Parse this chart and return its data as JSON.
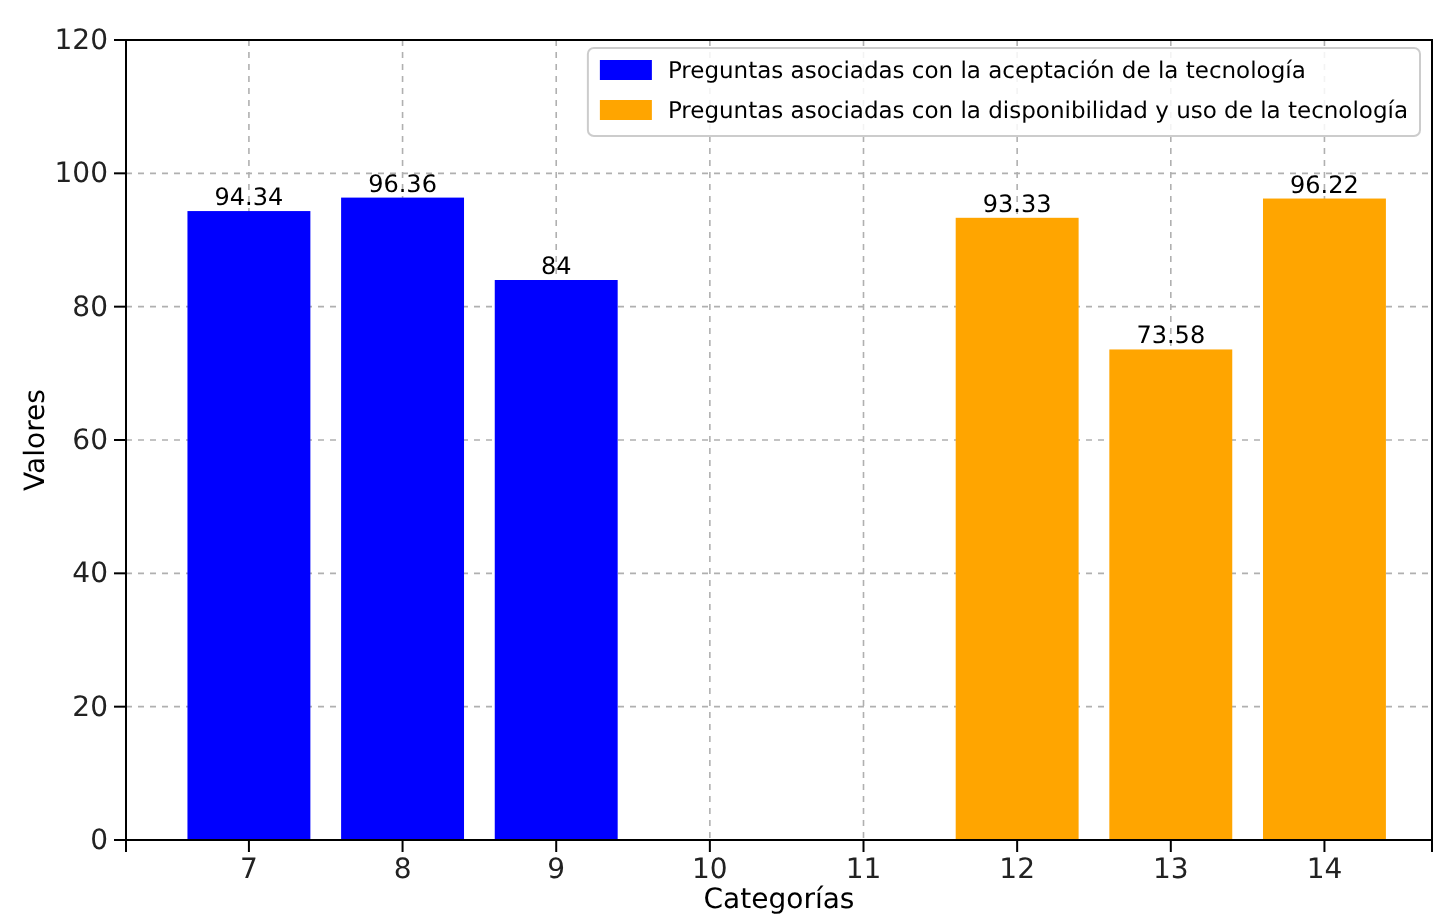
{
  "chart_data": {
    "type": "bar",
    "xlabel": "Categorías",
    "ylabel": "Valores",
    "xlim": [
      6.2,
      14.7
    ],
    "xticks": [
      7,
      8,
      9,
      10,
      11,
      12,
      13,
      14
    ],
    "ylim": [
      0,
      120
    ],
    "yticks": [
      0,
      20,
      40,
      60,
      80,
      100,
      120
    ],
    "series": [
      {
        "name": "Preguntas asociadas con la aceptación de la tecnología",
        "color": "#0000ff",
        "x": [
          7,
          8,
          9
        ],
        "values": [
          94.34,
          96.36,
          84
        ]
      },
      {
        "name": "Preguntas asociadas con la disponibilidad y uso de la tecnología",
        "color": "#ffa500",
        "x": [
          12,
          13,
          14
        ],
        "values": [
          93.33,
          73.58,
          96.22
        ]
      }
    ],
    "data_labels": true,
    "grid": true,
    "legend": "top right"
  }
}
